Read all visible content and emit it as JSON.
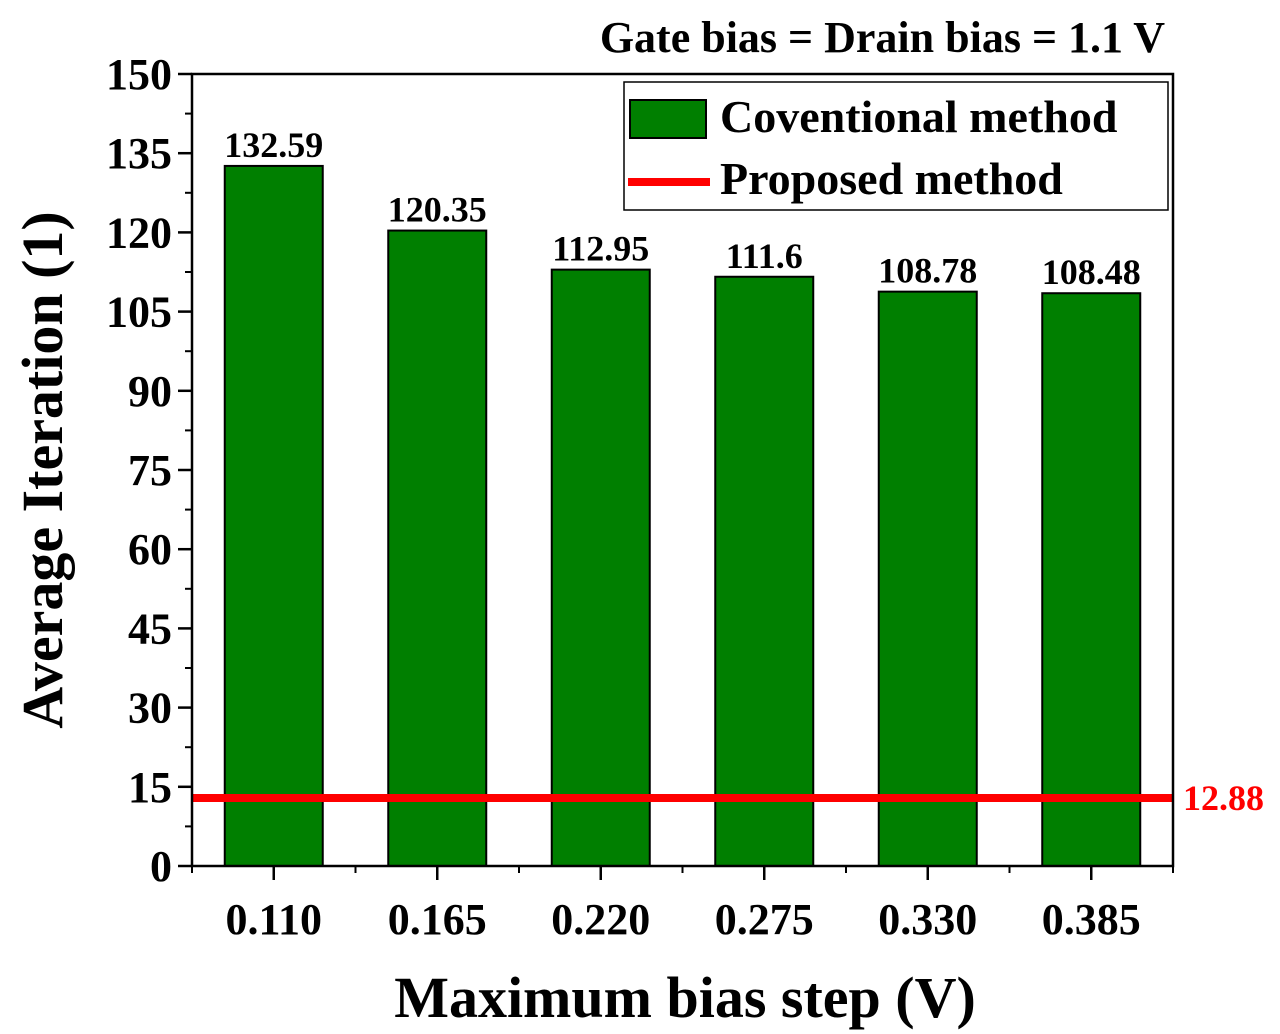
{
  "chart_data": {
    "type": "bar",
    "title": "Gate bias = Drain bias = 1.1 V",
    "xlabel": "Maximum bias step (V)",
    "ylabel": "Average Iteration (1)",
    "categories": [
      "0.110",
      "0.165",
      "0.220",
      "0.275",
      "0.330",
      "0.385"
    ],
    "ylim": [
      0,
      150
    ],
    "yticks": [
      0,
      15,
      30,
      45,
      60,
      75,
      90,
      105,
      120,
      135,
      150
    ],
    "series": [
      {
        "name": "Coventional method",
        "type": "bar",
        "color": "#007f00",
        "values": [
          132.59,
          120.35,
          112.95,
          111.6,
          108.78,
          108.48
        ],
        "labels": [
          "132.59",
          "120.35",
          "112.95",
          "111.6",
          "108.78",
          "108.48"
        ]
      },
      {
        "name": "Proposed method",
        "type": "hline",
        "color": "#ff0000",
        "value": 12.88,
        "label": "12.88"
      }
    ],
    "legend": {
      "position": "top-right",
      "entries": [
        "Coventional method",
        "Proposed method"
      ]
    },
    "grid": false
  }
}
